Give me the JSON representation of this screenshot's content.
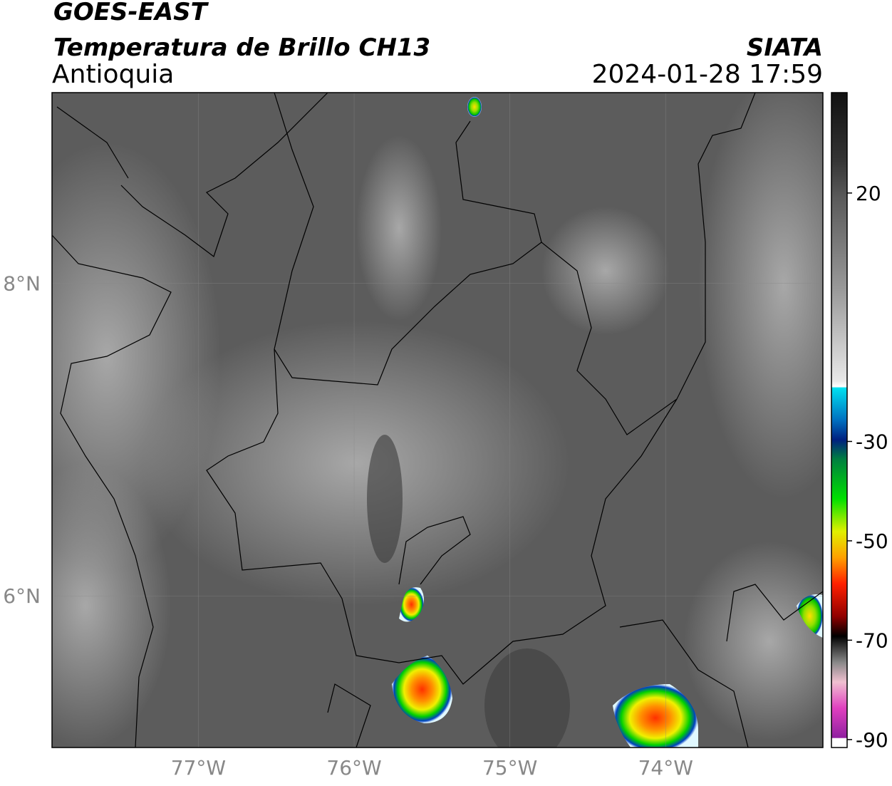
{
  "header": {
    "satellite": "GOES-EAST",
    "product": "Temperatura de Brillo CH13",
    "region": "Antioquia",
    "agency": "SIATA",
    "timestamp": "2024-01-28 17:59"
  },
  "map": {
    "lonlim": [
      -77.94,
      -72.99
    ],
    "latlim": [
      5.03,
      9.22
    ],
    "lon_ticks": [
      {
        "value": -77,
        "label": "77°W"
      },
      {
        "value": -76,
        "label": "76°W"
      },
      {
        "value": -75,
        "label": "75°W"
      },
      {
        "value": -74,
        "label": "74°W"
      }
    ],
    "lat_ticks": [
      {
        "value": 8,
        "label": "8°N"
      },
      {
        "value": 6,
        "label": "6°N"
      }
    ],
    "grid": true
  },
  "colorbar": {
    "lim": [
      -91.6,
      40.2
    ],
    "ticks": [
      20,
      -30,
      -50,
      -70,
      -90
    ]
  }
}
